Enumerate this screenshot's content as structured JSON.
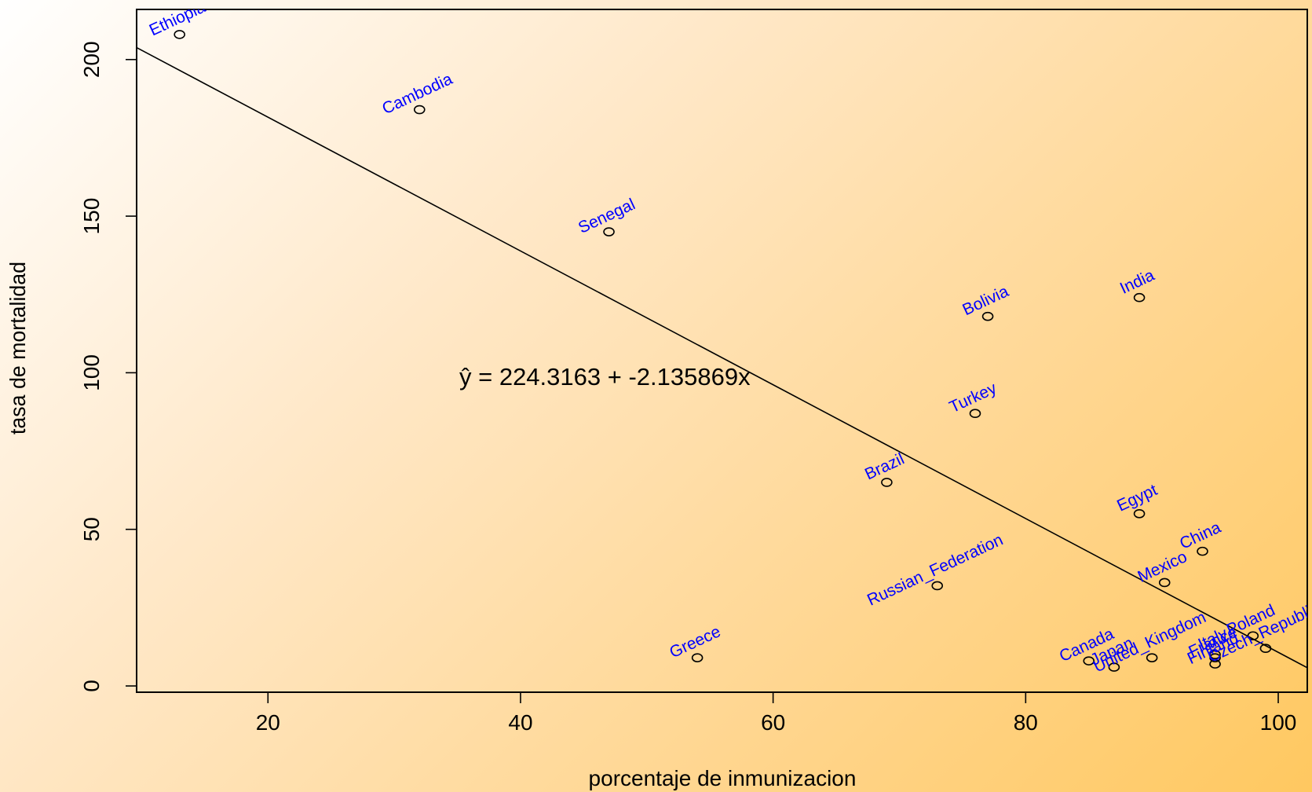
{
  "chart_data": {
    "type": "scatter",
    "title": "",
    "xlabel": "porcentaje de inmunizacion",
    "ylabel": "tasa de mortalidad",
    "xlim": [
      9.6,
      102.3
    ],
    "ylim": [
      -2,
      216
    ],
    "x_ticks": [
      20,
      40,
      60,
      80,
      100
    ],
    "y_ticks": [
      0,
      50,
      100,
      150,
      200
    ],
    "grid": false,
    "point_style": "open-circle",
    "points": [
      {
        "label": "Ethiopia",
        "x": 13,
        "y": 208
      },
      {
        "label": "Cambodia",
        "x": 32,
        "y": 184
      },
      {
        "label": "Senegal",
        "x": 47,
        "y": 145
      },
      {
        "label": "Bolivia",
        "x": 77,
        "y": 118
      },
      {
        "label": "India",
        "x": 89,
        "y": 124
      },
      {
        "label": "Turkey",
        "x": 76,
        "y": 87
      },
      {
        "label": "Brazil",
        "x": 69,
        "y": 65
      },
      {
        "label": "Egypt",
        "x": 89,
        "y": 55
      },
      {
        "label": "China",
        "x": 94,
        "y": 43
      },
      {
        "label": "Mexico",
        "x": 91,
        "y": 33
      },
      {
        "label": "Russian_Federation",
        "x": 73,
        "y": 32
      },
      {
        "label": "Greece",
        "x": 54,
        "y": 9
      },
      {
        "label": "Canada",
        "x": 85,
        "y": 8
      },
      {
        "label": "Japan",
        "x": 87,
        "y": 6
      },
      {
        "label": "United_Kingdom",
        "x": 90,
        "y": 9
      },
      {
        "label": "Poland",
        "x": 98,
        "y": 16
      },
      {
        "label": "Italy",
        "x": 95,
        "y": 10
      },
      {
        "label": "France",
        "x": 95,
        "y": 9
      },
      {
        "label": "Finland",
        "x": 95,
        "y": 7
      },
      {
        "label": "Czech_Republic",
        "x": 99,
        "y": 12
      }
    ],
    "regression": {
      "intercept": 224.3163,
      "slope": -2.135869
    },
    "equation_text": "ŷ = 224.3163 + -2.135869x",
    "label_color": "#0000ff"
  }
}
